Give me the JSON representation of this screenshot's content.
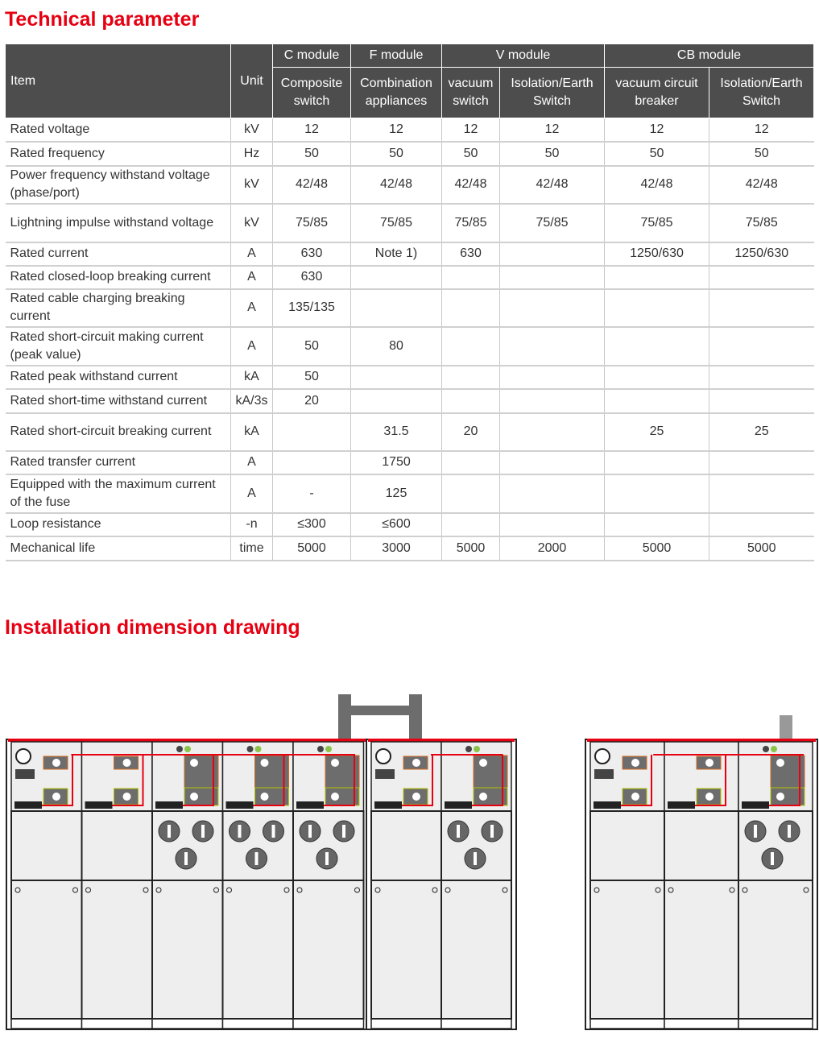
{
  "sections": {
    "technical": "Technical parameter",
    "installation": "Installation dimension drawing"
  },
  "table": {
    "item_header": "Item",
    "unit_header": "Unit",
    "groups": [
      "C module",
      "F module",
      "V module",
      "CB module"
    ],
    "subheaders": [
      "Composite switch",
      "Combination appliances",
      "vacuum switch",
      "Isolation/Earth Switch",
      "vacuum circuit breaker",
      "Isolation/Earth Switch"
    ],
    "rows": [
      {
        "item": "Rated voltage",
        "unit": "kV",
        "values": [
          "12",
          "12",
          "12",
          "12",
          "12",
          "12"
        ]
      },
      {
        "item": "Rated frequency",
        "unit": "Hz",
        "values": [
          "50",
          "50",
          "50",
          "50",
          "50",
          "50"
        ]
      },
      {
        "item": "Power frequency withstand voltage (phase/port)",
        "unit": "kV",
        "values": [
          "42/48",
          "42/48",
          "42/48",
          "42/48",
          "42/48",
          "42/48"
        ]
      },
      {
        "item": "Lightning impulse withstand voltage",
        "unit": "kV",
        "values": [
          "75/85",
          "75/85",
          "75/85",
          "75/85",
          "75/85",
          "75/85"
        ]
      },
      {
        "item": "Rated current",
        "unit": "A",
        "values": [
          "630",
          "Note 1)",
          "630",
          "",
          "1250/630",
          "1250/630"
        ]
      },
      {
        "item": "Rated closed-loop breaking current",
        "unit": "A",
        "values": [
          "630",
          "",
          "",
          "",
          "",
          ""
        ]
      },
      {
        "item": "Rated cable charging breaking current",
        "unit": "A",
        "values": [
          "135/135",
          "",
          "",
          "",
          "",
          ""
        ]
      },
      {
        "item": "Rated short-circuit making current (peak value)",
        "unit": "A",
        "values": [
          "50",
          "80",
          "",
          "",
          "",
          ""
        ]
      },
      {
        "item": "Rated peak withstand current",
        "unit": "kA",
        "values": [
          "50",
          "",
          "",
          "",
          "",
          ""
        ]
      },
      {
        "item": "Rated short-time withstand current",
        "unit": "kA/3s",
        "values": [
          "20",
          "",
          "",
          "",
          "",
          ""
        ]
      },
      {
        "item": "Rated short-circuit breaking current",
        "unit": "kA",
        "values": [
          "",
          "31.5",
          "20",
          "",
          "25",
          "25"
        ]
      },
      {
        "item": "Rated transfer current",
        "unit": "A",
        "values": [
          "",
          "1750",
          "",
          "",
          "",
          ""
        ]
      },
      {
        "item": "Equipped with the maximum current of the fuse",
        "unit": "A",
        "values": [
          "-",
          "125",
          "",
          "",
          "",
          ""
        ]
      },
      {
        "item": "Loop resistance",
        "unit": "-n",
        "values": [
          "≤300",
          "≤600",
          "",
          "",
          "",
          ""
        ]
      },
      {
        "item": "Mechanical life",
        "unit": "time",
        "values": [
          "5000",
          "3000",
          "5000",
          "2000",
          "5000",
          "5000"
        ]
      }
    ]
  },
  "colors": {
    "accent": "#e60012",
    "header_bg": "#4d4d4d",
    "panel": "#eeeeee",
    "device": "#6d6d6d"
  }
}
